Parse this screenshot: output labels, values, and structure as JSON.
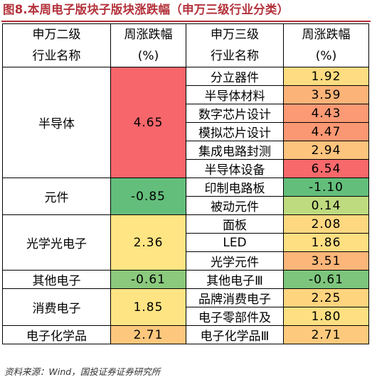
{
  "title": "图8.本周电子版块子版块涨跌幅（申万三级行业分类）",
  "headers": {
    "l2_line1": "申万二级",
    "l2_line2": "行业名称",
    "l2chg_line1": "周涨跌幅",
    "l2chg_line2": "(%)",
    "l3_line1": "申万三级",
    "l3_line2": "行业名称",
    "l3chg_line1": "周涨跌幅",
    "l3chg_line2": "(%)"
  },
  "groups": [
    {
      "name": "半导体",
      "change": "4.65",
      "color": "#f7666b",
      "subs": [
        {
          "name": "分立器件",
          "change": "1.92",
          "color": "#fedc81"
        },
        {
          "name": "半导体材料",
          "change": "3.59",
          "color": "#fcb378"
        },
        {
          "name": "数字芯片设计",
          "change": "4.43",
          "color": "#fb9a74"
        },
        {
          "name": "模拟芯片设计",
          "change": "4.47",
          "color": "#fa9873"
        },
        {
          "name": "集成电路封测",
          "change": "2.94",
          "color": "#fdc47d"
        },
        {
          "name": "半导体设备",
          "change": "6.54",
          "color": "#f8696b"
        }
      ]
    },
    {
      "name": "元件",
      "change": "-0.85",
      "color": "#63be7b",
      "subs": [
        {
          "name": "印制电路板",
          "change": "-1.10",
          "color": "#63be7b"
        },
        {
          "name": "被动元件",
          "change": "0.14",
          "color": "#bfdb7f"
        }
      ]
    },
    {
      "name": "光学光电子",
      "change": "2.36",
      "color": "#ffe583",
      "subs": [
        {
          "name": "面板",
          "change": "2.08",
          "color": "#fed880"
        },
        {
          "name": "LED",
          "change": "1.86",
          "color": "#fedf82"
        },
        {
          "name": "光学元件",
          "change": "3.51",
          "color": "#fcb679"
        }
      ]
    },
    {
      "name": "其他电子",
      "change": "-0.61",
      "color": "#8bc97d",
      "subs": [
        {
          "name": "其他电子Ⅲ",
          "change": "-0.61",
          "color": "#7dc57c"
        }
      ]
    },
    {
      "name": "消费电子",
      "change": "1.85",
      "color": "#fee483",
      "subs": [
        {
          "name": "品牌消费电子",
          "change": "2.25",
          "color": "#fed47f"
        },
        {
          "name": "电子零部件及",
          "change": "1.80",
          "color": "#fee082"
        }
      ]
    },
    {
      "name": "电子化学品",
      "change": "2.71",
      "color": "#fdc77d",
      "subs": [
        {
          "name": "电子化学品Ⅲ",
          "change": "2.71",
          "color": "#fdca7d"
        }
      ]
    }
  ],
  "source": "资料来源：Wind，国投证券证券研究所"
}
